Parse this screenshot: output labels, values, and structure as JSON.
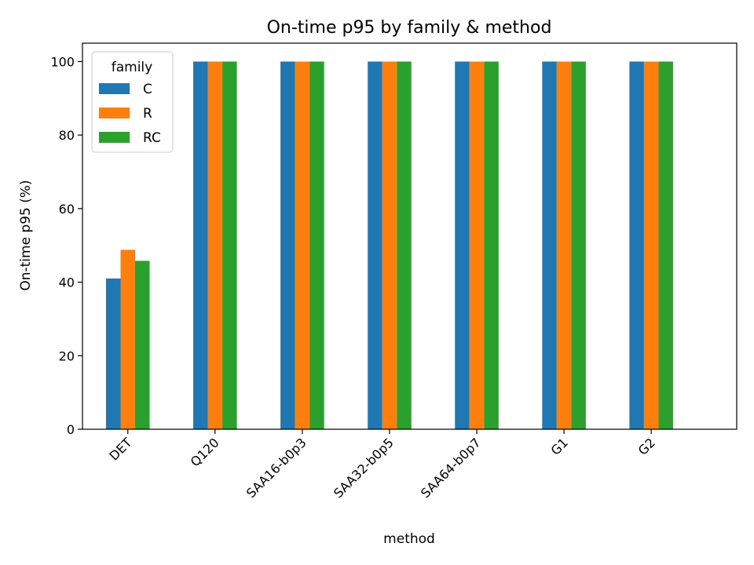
{
  "chart_data": {
    "type": "bar",
    "title": "On-time p95 by family & method",
    "xlabel": "method",
    "ylabel": "On-time p95 (%)",
    "categories": [
      "DET",
      "Q120",
      "SAA16-b0p3",
      "SAA32-b0p5",
      "SAA64-b0p7",
      "G1",
      "G2"
    ],
    "series": [
      {
        "name": "C",
        "color": "#1f77b4",
        "values": [
          41.0,
          100,
          100,
          100,
          100,
          100,
          100
        ]
      },
      {
        "name": "R",
        "color": "#ff7f0e",
        "values": [
          48.8,
          100,
          100,
          100,
          100,
          100,
          100
        ]
      },
      {
        "name": "RC",
        "color": "#2ca02c",
        "values": [
          45.8,
          100,
          100,
          100,
          100,
          100,
          100
        ]
      }
    ],
    "ylim": [
      0,
      105
    ],
    "yticks": [
      0,
      20,
      40,
      60,
      80,
      100
    ],
    "grid": false,
    "legend": {
      "title": "family",
      "placement": "top-left"
    }
  }
}
